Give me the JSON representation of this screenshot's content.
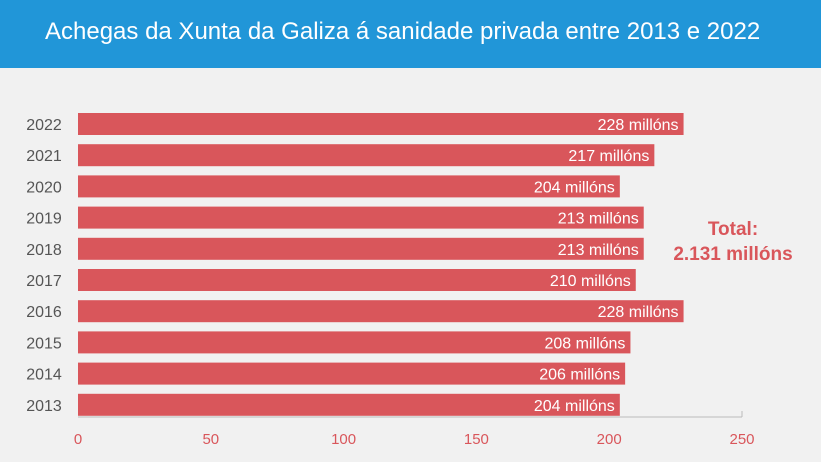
{
  "title": "Achegas da Xunta da Galiza á sanidade privada entre 2013 e 2022",
  "total": {
    "label": "Total:",
    "value": "2.131 millóns"
  },
  "colors": {
    "header": "#2196d8",
    "bar": "#d9565b",
    "total_text": "#d9565b"
  },
  "chart_data": {
    "type": "bar",
    "orientation": "horizontal",
    "title": "Achegas da Xunta da Galiza á sanidade privada entre 2013 e 2022",
    "categories": [
      "2022",
      "2021",
      "2020",
      "2019",
      "2018",
      "2017",
      "2016",
      "2015",
      "2014",
      "2013"
    ],
    "values": [
      228,
      217,
      204,
      213,
      213,
      210,
      228,
      208,
      206,
      204
    ],
    "data_labels": [
      "228 millóns",
      "217 millóns",
      "204 millóns",
      "213 millóns",
      "213 millóns",
      "210 millóns",
      "228 millóns",
      "208 millóns",
      "206 millóns",
      "204 millóns"
    ],
    "xlim": [
      0,
      250
    ],
    "xticks": [
      "0",
      "50",
      "100",
      "150",
      "200",
      "250"
    ],
    "grid": false,
    "legend": "none"
  }
}
